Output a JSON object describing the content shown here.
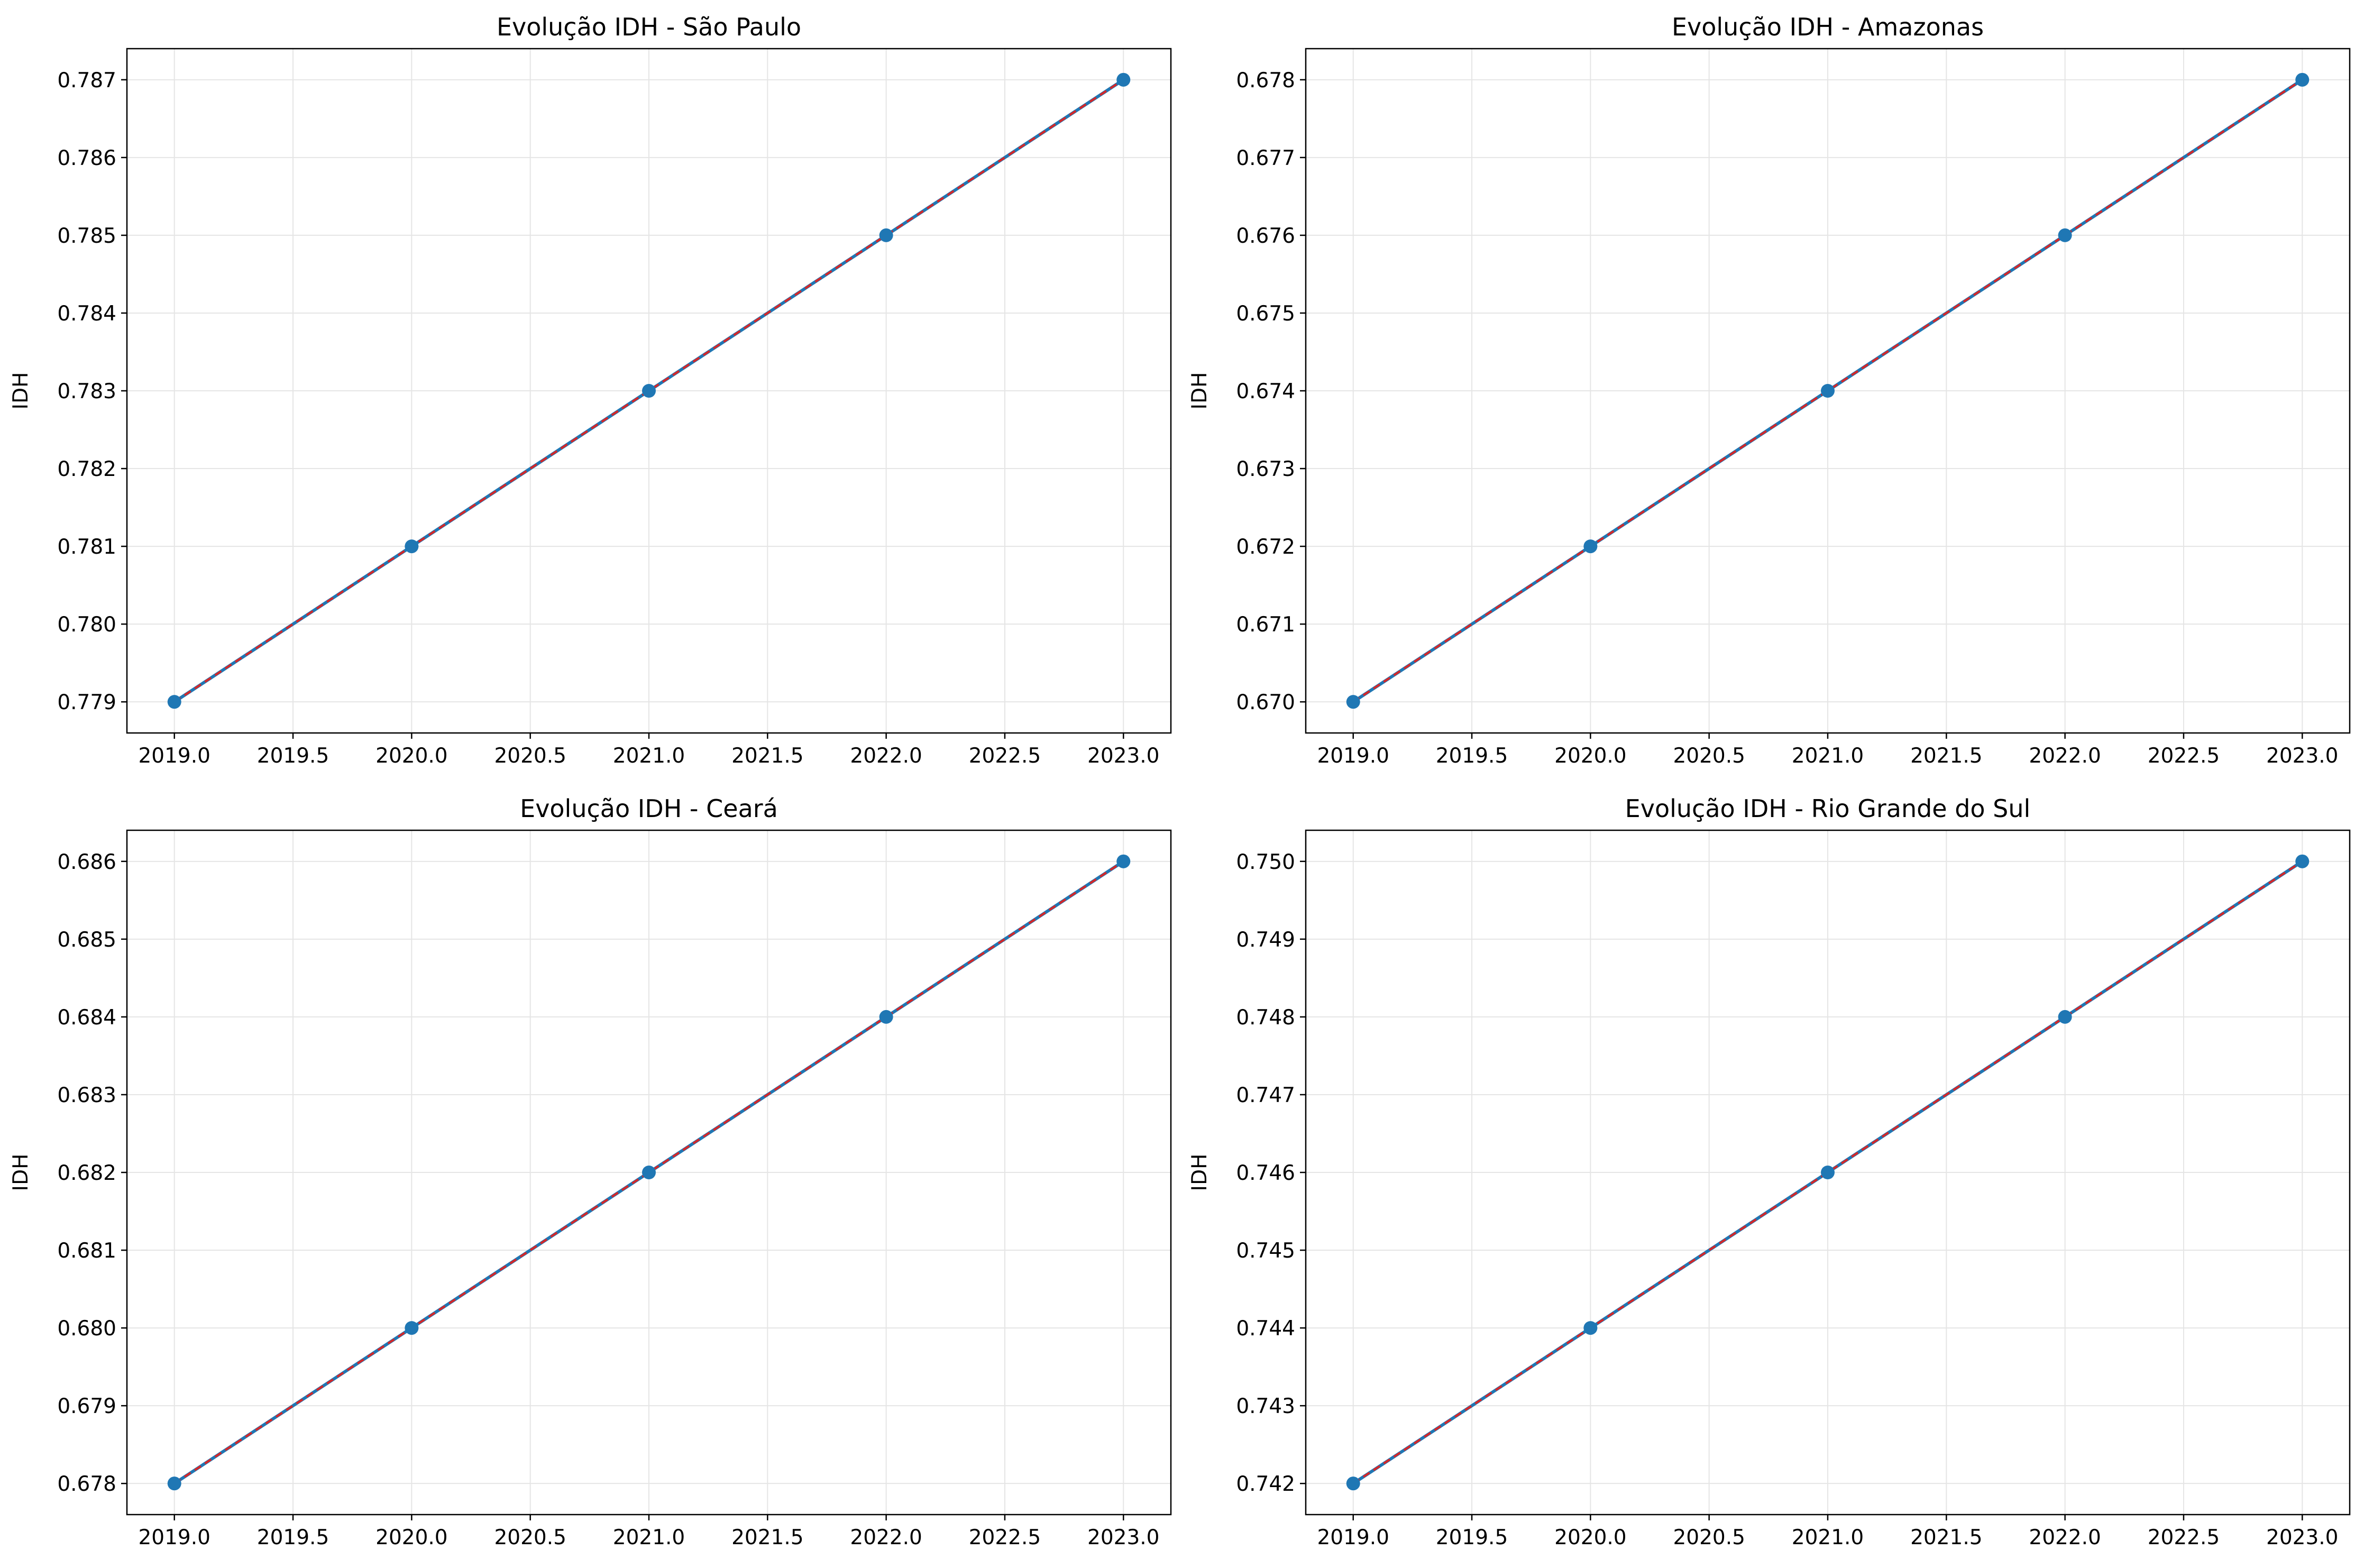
{
  "chart_data": [
    {
      "type": "line",
      "title": "Evolução IDH - São Paulo",
      "xlabel": "",
      "ylabel": "IDH",
      "x": [
        2019,
        2020,
        2021,
        2022,
        2023
      ],
      "series": [
        {
          "values": [
            0.779,
            0.781,
            0.783,
            0.785,
            0.787
          ],
          "color": "#1f77b4",
          "marker": "circle"
        },
        {
          "values": [
            0.779,
            0.781,
            0.783,
            0.785,
            0.787
          ],
          "color": "#d62728",
          "style": "dashed"
        }
      ],
      "xlim": [
        2018.8,
        2023.2
      ],
      "ylim": [
        0.7786,
        0.7874
      ],
      "xticks": [
        "2019.0",
        "2019.5",
        "2020.0",
        "2020.5",
        "2021.0",
        "2021.5",
        "2022.0",
        "2022.5",
        "2023.0"
      ],
      "yticks": [
        "0.779",
        "0.780",
        "0.781",
        "0.782",
        "0.783",
        "0.784",
        "0.785",
        "0.786",
        "0.787"
      ],
      "grid": true
    },
    {
      "type": "line",
      "title": "Evolução IDH - Amazonas",
      "xlabel": "",
      "ylabel": "IDH",
      "x": [
        2019,
        2020,
        2021,
        2022,
        2023
      ],
      "series": [
        {
          "values": [
            0.67,
            0.672,
            0.674,
            0.676,
            0.678
          ],
          "color": "#1f77b4",
          "marker": "circle"
        },
        {
          "values": [
            0.67,
            0.672,
            0.674,
            0.676,
            0.678
          ],
          "color": "#d62728",
          "style": "dashed"
        }
      ],
      "xlim": [
        2018.8,
        2023.2
      ],
      "ylim": [
        0.6696,
        0.6784
      ],
      "xticks": [
        "2019.0",
        "2019.5",
        "2020.0",
        "2020.5",
        "2021.0",
        "2021.5",
        "2022.0",
        "2022.5",
        "2023.0"
      ],
      "yticks": [
        "0.670",
        "0.671",
        "0.672",
        "0.673",
        "0.674",
        "0.675",
        "0.676",
        "0.677",
        "0.678"
      ],
      "grid": true
    },
    {
      "type": "line",
      "title": "Evolução IDH - Ceará",
      "xlabel": "",
      "ylabel": "IDH",
      "x": [
        2019,
        2020,
        2021,
        2022,
        2023
      ],
      "series": [
        {
          "values": [
            0.678,
            0.68,
            0.682,
            0.684,
            0.686
          ],
          "color": "#1f77b4",
          "marker": "circle"
        },
        {
          "values": [
            0.678,
            0.68,
            0.682,
            0.684,
            0.686
          ],
          "color": "#d62728",
          "style": "dashed"
        }
      ],
      "xlim": [
        2018.8,
        2023.2
      ],
      "ylim": [
        0.6776,
        0.6864
      ],
      "xticks": [
        "2019.0",
        "2019.5",
        "2020.0",
        "2020.5",
        "2021.0",
        "2021.5",
        "2022.0",
        "2022.5",
        "2023.0"
      ],
      "yticks": [
        "0.678",
        "0.679",
        "0.680",
        "0.681",
        "0.682",
        "0.683",
        "0.684",
        "0.685",
        "0.686"
      ],
      "grid": true
    },
    {
      "type": "line",
      "title": "Evolução IDH - Rio Grande do Sul",
      "xlabel": "",
      "ylabel": "IDH",
      "x": [
        2019,
        2020,
        2021,
        2022,
        2023
      ],
      "series": [
        {
          "values": [
            0.742,
            0.744,
            0.746,
            0.748,
            0.75
          ],
          "color": "#1f77b4",
          "marker": "circle"
        },
        {
          "values": [
            0.742,
            0.744,
            0.746,
            0.748,
            0.75
          ],
          "color": "#d62728",
          "style": "dashed"
        }
      ],
      "xlim": [
        2018.8,
        2023.2
      ],
      "ylim": [
        0.7416,
        0.7504
      ],
      "xticks": [
        "2019.0",
        "2019.5",
        "2020.0",
        "2020.5",
        "2021.0",
        "2021.5",
        "2022.0",
        "2022.5",
        "2023.0"
      ],
      "yticks": [
        "0.742",
        "0.743",
        "0.744",
        "0.745",
        "0.746",
        "0.747",
        "0.748",
        "0.749",
        "0.750"
      ],
      "grid": true
    }
  ],
  "colors": {
    "background": "#ffffff",
    "grid": "#e5e5e5",
    "axes": "#000000"
  }
}
